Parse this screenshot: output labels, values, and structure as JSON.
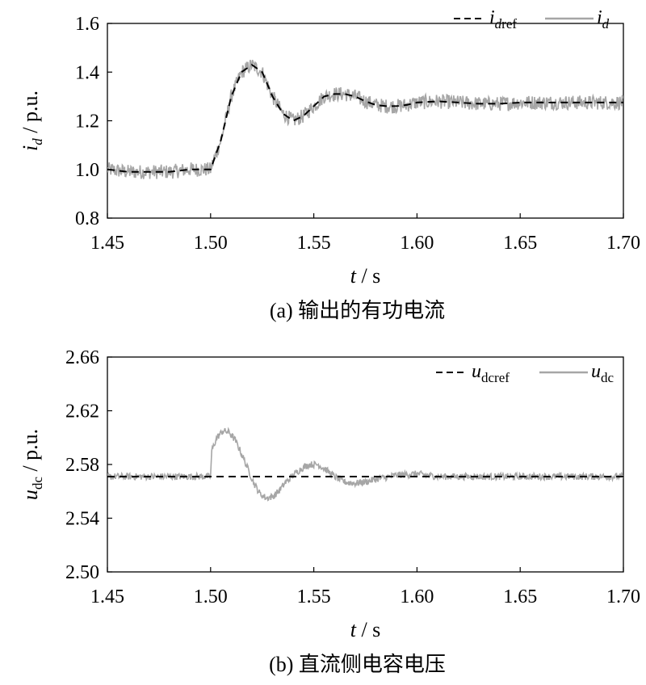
{
  "chart_data": [
    {
      "type": "line",
      "caption": "(a) 输出的有功电流",
      "xlabel": {
        "var": "t",
        "unit": " / s"
      },
      "ylabel": {
        "var": "i",
        "sub": "d",
        "unit": " / p.u."
      },
      "xlim": [
        1.45,
        1.7
      ],
      "ylim": [
        0.8,
        1.6
      ],
      "xticks": [
        "1.45",
        "1.50",
        "1.55",
        "1.60",
        "1.65",
        "1.70"
      ],
      "yticks": [
        "0.8",
        "1.0",
        "1.2",
        "1.4",
        "1.6"
      ],
      "grid": false,
      "legend_position": "top-right",
      "colors": {
        "ref": "#000000",
        "meas": "#a6a6a6"
      },
      "series": [
        {
          "name": "i_dref",
          "legend": {
            "var": "i",
            "sub": "d",
            "sub_italic": true,
            "sub2": "ref"
          },
          "style": "dashed",
          "x": [
            1.45,
            1.46,
            1.47,
            1.48,
            1.49,
            1.5,
            1.505,
            1.51,
            1.515,
            1.52,
            1.525,
            1.53,
            1.535,
            1.54,
            1.545,
            1.55,
            1.555,
            1.56,
            1.565,
            1.57,
            1.575,
            1.58,
            1.585,
            1.59,
            1.595,
            1.6,
            1.61,
            1.62,
            1.63,
            1.64,
            1.65,
            1.66,
            1.67,
            1.68,
            1.69,
            1.7
          ],
          "y": [
            1.0,
            0.99,
            0.99,
            0.99,
            1.0,
            1.0,
            1.12,
            1.3,
            1.4,
            1.43,
            1.4,
            1.3,
            1.23,
            1.2,
            1.22,
            1.26,
            1.3,
            1.31,
            1.31,
            1.3,
            1.28,
            1.265,
            1.26,
            1.26,
            1.265,
            1.275,
            1.28,
            1.275,
            1.27,
            1.27,
            1.275,
            1.275,
            1.275,
            1.275,
            1.275,
            1.275
          ]
        },
        {
          "name": "i_d",
          "legend": {
            "var": "i",
            "sub": "d",
            "sub_italic": true,
            "sub2": ""
          },
          "style": "noisy",
          "noise": 0.03,
          "x": [
            1.45,
            1.46,
            1.47,
            1.48,
            1.49,
            1.5,
            1.505,
            1.51,
            1.515,
            1.52,
            1.525,
            1.53,
            1.535,
            1.54,
            1.545,
            1.55,
            1.555,
            1.56,
            1.565,
            1.57,
            1.575,
            1.58,
            1.585,
            1.59,
            1.595,
            1.6,
            1.61,
            1.62,
            1.63,
            1.64,
            1.65,
            1.66,
            1.67,
            1.68,
            1.69,
            1.7
          ],
          "y": [
            1.0,
            0.99,
            0.99,
            0.99,
            1.0,
            1.0,
            1.12,
            1.3,
            1.4,
            1.43,
            1.4,
            1.3,
            1.23,
            1.2,
            1.22,
            1.26,
            1.3,
            1.31,
            1.31,
            1.3,
            1.28,
            1.265,
            1.26,
            1.26,
            1.265,
            1.275,
            1.28,
            1.275,
            1.27,
            1.27,
            1.275,
            1.275,
            1.275,
            1.275,
            1.275,
            1.275
          ]
        }
      ]
    },
    {
      "type": "line",
      "caption": "(b) 直流侧电容电压",
      "xlabel": {
        "var": "t",
        "unit": " / s"
      },
      "ylabel": {
        "var": "u",
        "sub": "dc",
        "unit": " / p.u."
      },
      "xlim": [
        1.45,
        1.7
      ],
      "ylim": [
        2.5,
        2.66
      ],
      "xticks": [
        "1.45",
        "1.50",
        "1.55",
        "1.60",
        "1.65",
        "1.70"
      ],
      "yticks": [
        "2.50",
        "2.54",
        "2.58",
        "2.62",
        "2.66"
      ],
      "grid": false,
      "legend_position": "top-right",
      "colors": {
        "ref": "#000000",
        "meas": "#a6a6a6"
      },
      "series": [
        {
          "name": "u_dcref",
          "legend": {
            "var": "u",
            "sub": "dcref",
            "sub_italic": false,
            "sub2": ""
          },
          "style": "dashed",
          "x": [
            1.45,
            1.7
          ],
          "y": [
            2.571,
            2.571
          ]
        },
        {
          "name": "u_dc",
          "legend": {
            "var": "u",
            "sub": "dc",
            "sub_italic": false,
            "sub2": ""
          },
          "style": "noisy",
          "noise": 0.0025,
          "x": [
            1.45,
            1.47,
            1.49,
            1.5,
            1.5005,
            1.503,
            1.506,
            1.509,
            1.512,
            1.515,
            1.518,
            1.521,
            1.524,
            1.527,
            1.53,
            1.533,
            1.536,
            1.54,
            1.544,
            1.548,
            1.552,
            1.556,
            1.56,
            1.565,
            1.57,
            1.575,
            1.58,
            1.59,
            1.6,
            1.61,
            1.62,
            1.65,
            1.68,
            1.7
          ],
          "y": [
            2.571,
            2.571,
            2.571,
            2.571,
            2.59,
            2.6,
            2.605,
            2.604,
            2.598,
            2.588,
            2.577,
            2.566,
            2.558,
            2.555,
            2.556,
            2.56,
            2.566,
            2.572,
            2.577,
            2.58,
            2.58,
            2.576,
            2.571,
            2.567,
            2.566,
            2.567,
            2.569,
            2.572,
            2.573,
            2.571,
            2.571,
            2.571,
            2.571,
            2.571
          ]
        }
      ]
    }
  ]
}
